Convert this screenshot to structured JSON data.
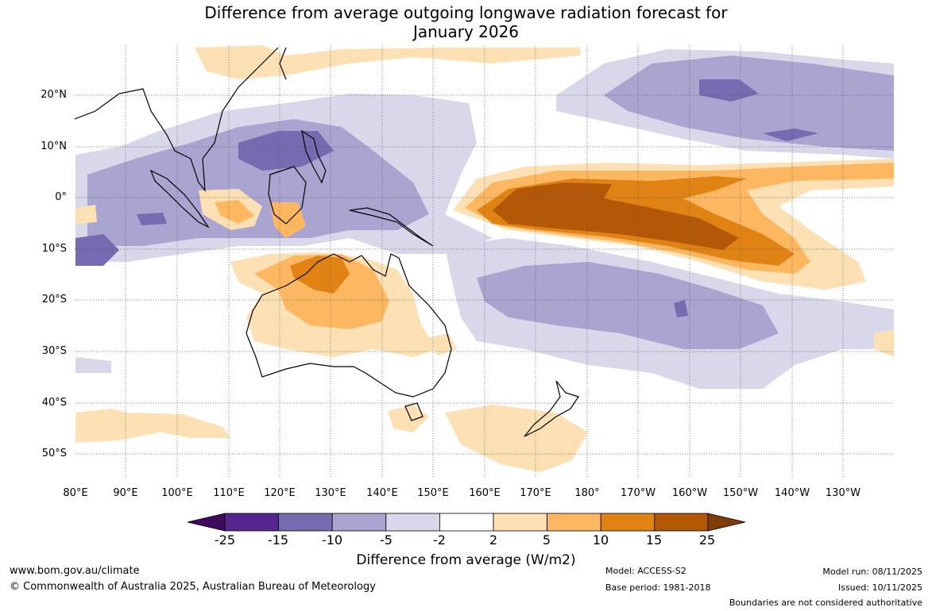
{
  "title": {
    "line1": "Difference from average outgoing longwave radiation forecast for",
    "line2": "January 2026"
  },
  "map": {
    "lat_labels": [
      "20°N",
      "10°N",
      "0°",
      "10°S",
      "20°S",
      "30°S",
      "40°S",
      "50°S"
    ],
    "lon_labels": [
      "80°E",
      "90°E",
      "100°E",
      "110°E",
      "120°E",
      "130°E",
      "140°E",
      "150°E",
      "160°E",
      "170°E",
      "180°",
      "170°W",
      "160°W",
      "150°W",
      "140°W",
      "130°W"
    ]
  },
  "colorbar": {
    "ticks": [
      "-25",
      "-15",
      "-10",
      "-5",
      "-2",
      "2",
      "5",
      "10",
      "15",
      "25"
    ],
    "colors": [
      "#3f0a5e",
      "#54278f",
      "#756bb1",
      "#aaa5d0",
      "#d8d8ea",
      "#ffffff",
      "#fde0b4",
      "#fdb761",
      "#e08214",
      "#b35806",
      "#7f3b08"
    ],
    "title": "Difference from average (W/m2)"
  },
  "footer": {
    "website": "www.bom.gov.au/climate",
    "copyright": "© Commonwealth of Australia 2025, Australian Bureau of Meteorology",
    "model": "Model: ACCESS-S2",
    "base_period": "Base period: 1981-2018",
    "model_run": "Model run: 08/11/2025",
    "issued": "Issued: 10/11/2025",
    "disclaimer": "Boundaries are not considered authoritative"
  }
}
